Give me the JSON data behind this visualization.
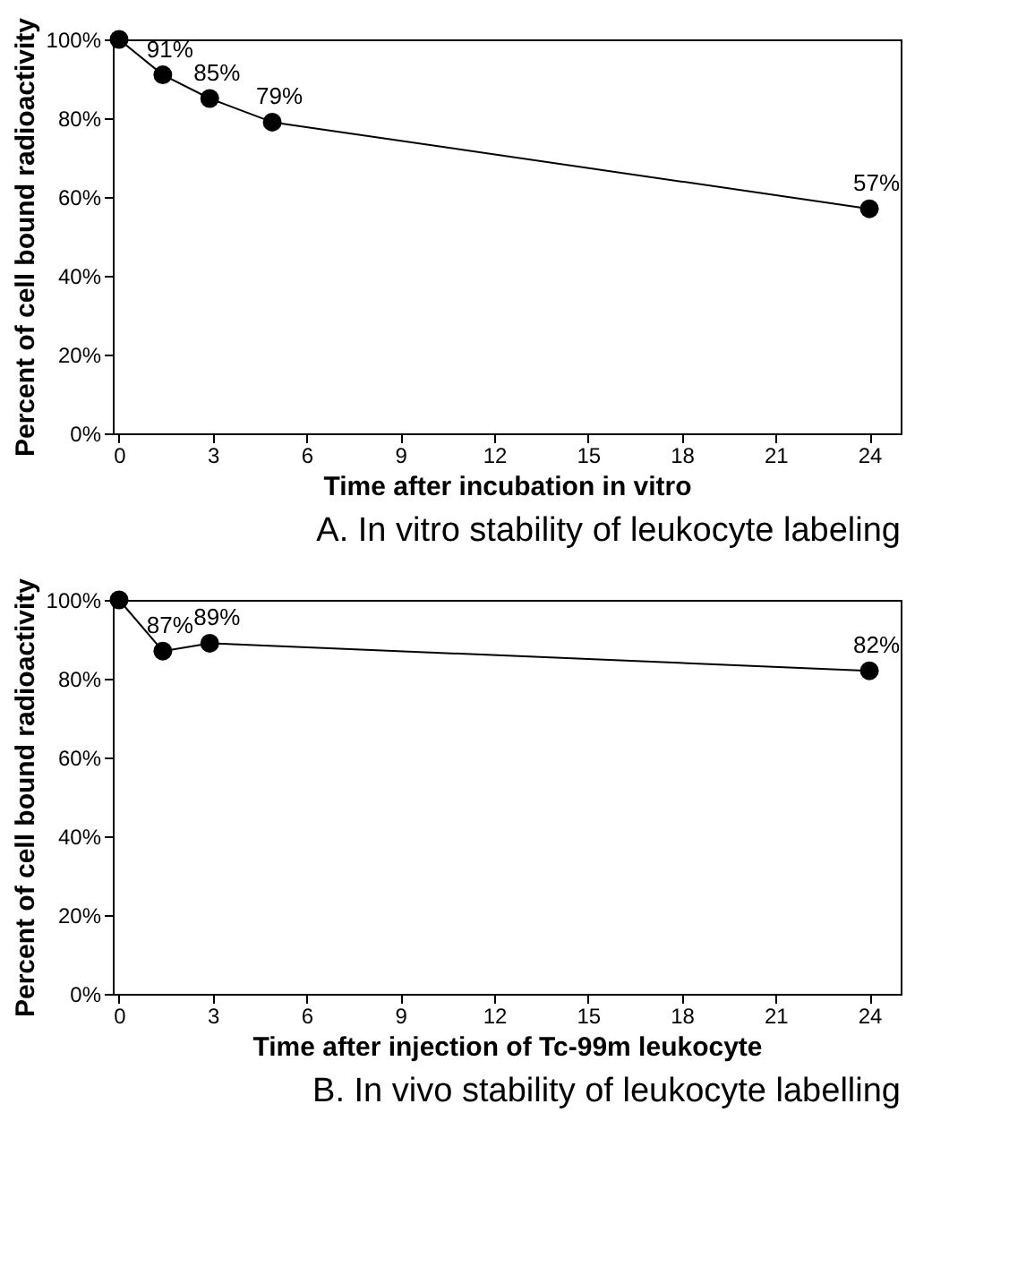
{
  "chart_data": [
    {
      "type": "line",
      "title": "A. In vitro stability of leukocyte labeling",
      "xlabel": "Time after incubation in vitro",
      "ylabel": "Percent of cell bound radioactivity",
      "x": [
        0,
        1.4,
        2.9,
        4.9,
        24
      ],
      "series": [
        {
          "color": "#000000",
          "values": [
            100,
            91,
            85,
            79,
            57
          ],
          "value_labels": [
            null,
            "91%",
            "85%",
            "79%",
            "57%"
          ]
        }
      ],
      "xlim": [
        -0.2,
        25
      ],
      "xticks": [
        0,
        3,
        6,
        9,
        12,
        15,
        18,
        21,
        24
      ],
      "ylim": [
        0,
        100
      ],
      "yticks": [
        {
          "value": 0,
          "label": "0%"
        },
        {
          "value": 20,
          "label": "20%"
        },
        {
          "value": 40,
          "label": "40%"
        },
        {
          "value": 60,
          "label": "60%"
        },
        {
          "value": 80,
          "label": "80%"
        },
        {
          "value": 100,
          "label": "100%"
        }
      ],
      "marker": "circle",
      "line_style": "solid",
      "grid": false
    },
    {
      "type": "line",
      "title": "B. In vivo stability of leukocyte labelling",
      "xlabel": "Time after injection of Tc-99m leukocyte",
      "ylabel": "Percent of cell bound radioactivity",
      "x": [
        0,
        1.4,
        2.9,
        24
      ],
      "series": [
        {
          "color": "#000000",
          "values": [
            100,
            87,
            89,
            82
          ],
          "value_labels": [
            null,
            "87%",
            "89%",
            "82%"
          ]
        }
      ],
      "xlim": [
        -0.2,
        25
      ],
      "xticks": [
        0,
        3,
        6,
        9,
        12,
        15,
        18,
        21,
        24
      ],
      "ylim": [
        0,
        100
      ],
      "yticks": [
        {
          "value": 0,
          "label": "0%"
        },
        {
          "value": 20,
          "label": "20%"
        },
        {
          "value": 40,
          "label": "40%"
        },
        {
          "value": 60,
          "label": "60%"
        },
        {
          "value": 80,
          "label": "80%"
        },
        {
          "value": 100,
          "label": "100%"
        }
      ],
      "marker": "circle",
      "line_style": "solid",
      "grid": false
    }
  ]
}
